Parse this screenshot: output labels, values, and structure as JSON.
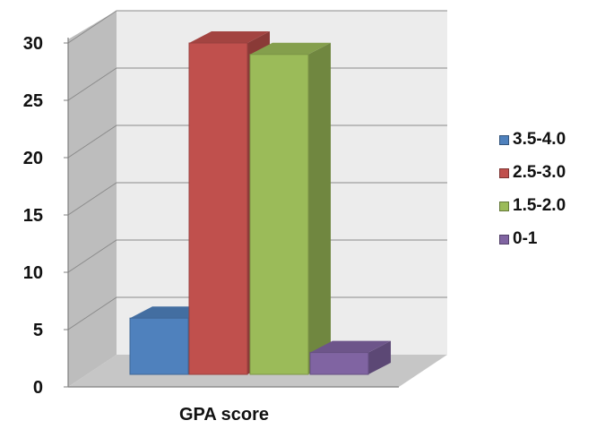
{
  "chart_data": {
    "type": "bar",
    "style": "3d-clustered-column",
    "xlabel": "GPA score",
    "ylabel": "",
    "ylim": [
      0,
      30
    ],
    "yticks": [
      0,
      5,
      10,
      15,
      20,
      25,
      30
    ],
    "grid": true,
    "legend_position": "right",
    "series": [
      {
        "name": "3.5-4.0",
        "value": 6,
        "color": "#4f81bd"
      },
      {
        "name": "2.5-3.0",
        "value": 30,
        "color": "#c0504d"
      },
      {
        "name": "1.5-2.0",
        "value": 29,
        "color": "#9bbb59"
      },
      {
        "name": "0-1",
        "value": 3,
        "color": "#8064a2"
      }
    ]
  }
}
